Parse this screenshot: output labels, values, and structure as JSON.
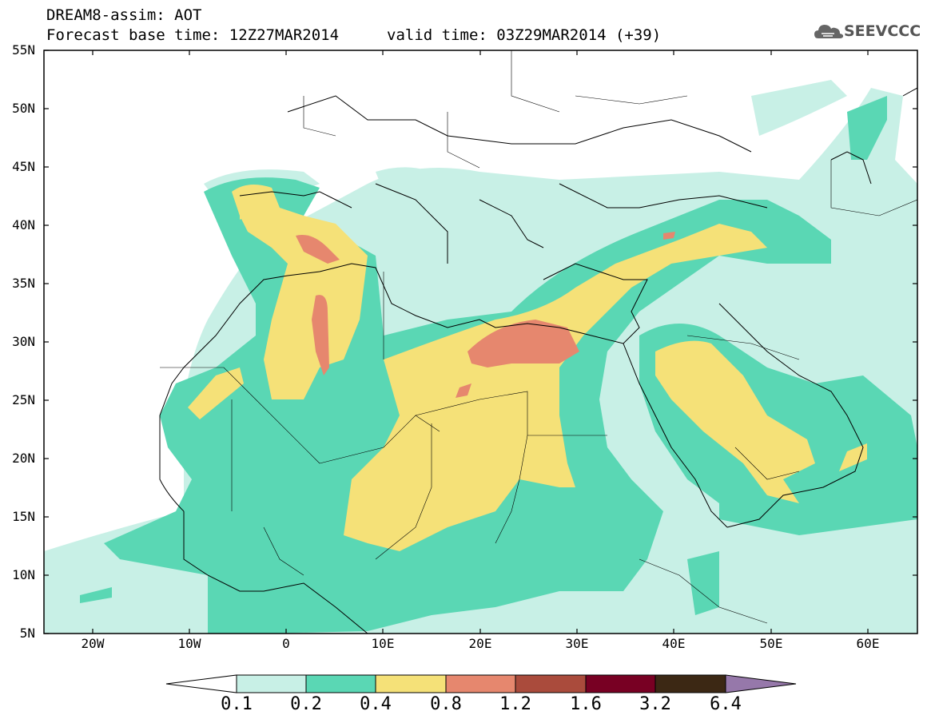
{
  "header": {
    "title_line1": "DREAM8-assim: AOT",
    "title_line2_base": "Forecast base time: 12Z27MAR2014",
    "title_line2_valid": "valid time: 03Z29MAR2014 (+39)",
    "logo_text": "SEEVCCC"
  },
  "map": {
    "lon_range": [
      -25,
      65
    ],
    "lat_range": [
      5,
      55
    ],
    "lat_labels": [
      "55N",
      "50N",
      "45N",
      "40N",
      "35N",
      "30N",
      "25N",
      "20N",
      "15N",
      "10N",
      "5N"
    ],
    "lon_labels": [
      "20W",
      "10W",
      "0",
      "10E",
      "20E",
      "30E",
      "40E",
      "50E",
      "60E"
    ]
  },
  "colorbar": {
    "labels": [
      "0.1",
      "0.2",
      "0.4",
      "0.8",
      "1.2",
      "1.6",
      "3.2",
      "6.4"
    ],
    "colors": {
      "below_0_1": "#ffffff",
      "c_0_1_0_2": "#c8f0e6",
      "c_0_2_0_4": "#5ad7b4",
      "c_0_4_0_8": "#f5e178",
      "c_0_8_1_2": "#e6876e",
      "c_1_2_1_6": "#aa4b3c",
      "c_1_6_3_2": "#780023",
      "c_3_2_6_4": "#3c2814",
      "above_6_4": "#9678aa"
    }
  }
}
